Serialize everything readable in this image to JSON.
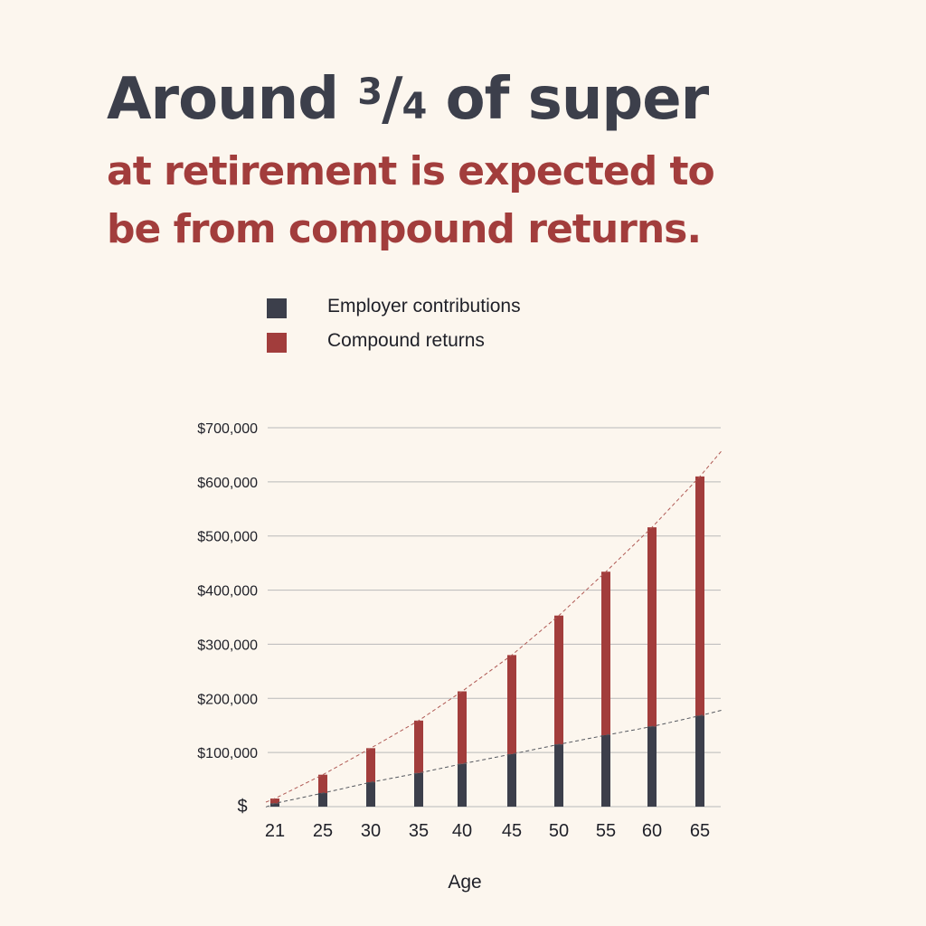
{
  "headline": {
    "line1_start": "Around ",
    "fraction_num": "3",
    "fraction_slash": "/",
    "fraction_den": "4",
    "line1_end": " of super",
    "line2": "at retirement is expected to",
    "line3": "be from compound returns."
  },
  "colors": {
    "employer": "#3c3f4b",
    "compound": "#a23d3c",
    "background": "#fcf6ee",
    "grid": "#b9b9b9"
  },
  "chart_data": {
    "type": "bar",
    "stacked": true,
    "categories": [
      "21",
      "25",
      "30",
      "35",
      "40",
      "45",
      "50",
      "55",
      "60",
      "65"
    ],
    "series": [
      {
        "name": "Employer contributions",
        "values": [
          6000,
          25000,
          45000,
          62000,
          79000,
          97000,
          115000,
          132000,
          148000,
          168000
        ]
      },
      {
        "name": "Compound returns",
        "values": [
          9000,
          34000,
          63000,
          97000,
          134000,
          183000,
          238000,
          302000,
          368000,
          442000
        ]
      }
    ],
    "xlabel": "Age",
    "ylabel": "",
    "ylim": [
      0,
      700000
    ],
    "yticks": [
      "$",
      "$100,000",
      "$200,000",
      "$300,000",
      "$400,000",
      "$500,000",
      "$600,000",
      "$700,000"
    ],
    "grid": true,
    "legend_position": "top",
    "trendlines": "dashed"
  }
}
